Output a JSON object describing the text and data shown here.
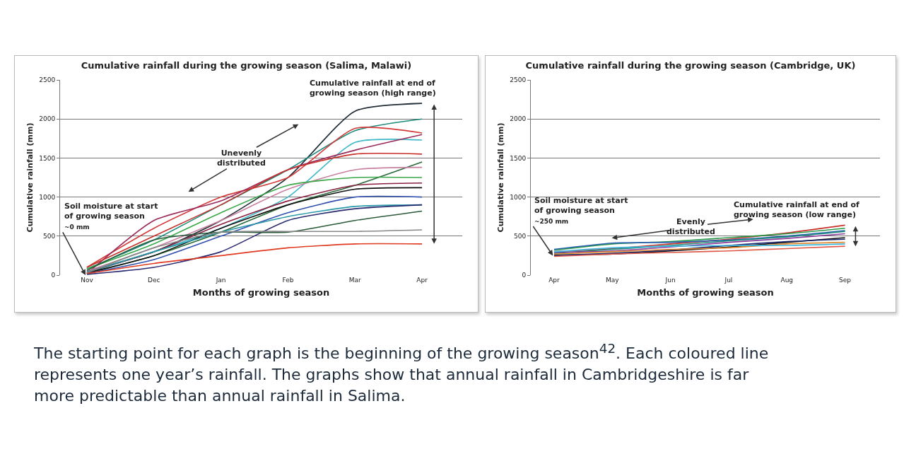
{
  "chart_data": [
    {
      "type": "line",
      "title": "Cumulative rainfall during the growing season (Salima, Malawi)",
      "xlabel": "Months of growing season",
      "ylabel": "Cumulative rainfall (mm)",
      "categories": [
        "Nov",
        "Dec",
        "Jan",
        "Feb",
        "Mar",
        "Apr"
      ],
      "ylim": [
        0,
        2500
      ],
      "yticks": [
        0,
        500,
        1000,
        1500,
        2000,
        2500
      ],
      "grid": "y",
      "marker": "none",
      "line_style": "solid",
      "series": [
        {
          "color": "#1f2a33",
          "values": [
            50,
            300,
            700,
            1250,
            2100,
            2200
          ]
        },
        {
          "color": "#1a8a7a",
          "values": [
            80,
            450,
            900,
            1350,
            1850,
            2000
          ]
        },
        {
          "color": "#d23a3a",
          "values": [
            100,
            600,
            1000,
            1250,
            1880,
            1820
          ]
        },
        {
          "color": "#3fb8c8",
          "values": [
            30,
            300,
            600,
            1000,
            1700,
            1730
          ]
        },
        {
          "color": "#9a2a5a",
          "values": [
            20,
            700,
            950,
            1350,
            1600,
            1800
          ]
        },
        {
          "color": "#c8302a",
          "values": [
            100,
            500,
            900,
            1350,
            1550,
            1550
          ]
        },
        {
          "color": "#2a6a3a",
          "values": [
            20,
            250,
            550,
            900,
            1150,
            1450
          ]
        },
        {
          "color": "#c880a0",
          "values": [
            50,
            350,
            700,
            1100,
            1350,
            1380
          ]
        },
        {
          "color": "#3aa84a",
          "values": [
            80,
            400,
            800,
            1150,
            1250,
            1250
          ]
        },
        {
          "color": "#8a2040",
          "values": [
            40,
            300,
            650,
            950,
            1150,
            1180
          ]
        },
        {
          "color": "#111111",
          "values": [
            30,
            250,
            600,
            900,
            1100,
            1120
          ]
        },
        {
          "color": "#3050b0",
          "values": [
            20,
            200,
            500,
            800,
            1000,
            1000
          ]
        },
        {
          "color": "#2a9aa8",
          "values": [
            40,
            300,
            550,
            750,
            880,
            900
          ]
        },
        {
          "color": "#2a2a70",
          "values": [
            10,
            100,
            300,
            700,
            850,
            900
          ]
        },
        {
          "color": "#2a5a3a",
          "values": [
            60,
            450,
            550,
            550,
            700,
            820
          ]
        },
        {
          "color": "#888888",
          "values": [
            30,
            350,
            550,
            560,
            560,
            580
          ]
        },
        {
          "color": "#e03a20",
          "values": [
            20,
            150,
            250,
            350,
            400,
            400
          ]
        }
      ],
      "annotations": [
        {
          "text": "Soil moisture at start of growing season\n~0 mm",
          "x": "Nov",
          "y": 0
        },
        "Unevenly distributed",
        {
          "text": "Cumulative rainfall at end of growing season (high range)",
          "x": "Apr",
          "y": 2200
        },
        "The starting point for each graph is the beginning of the growing season$^{42}$. Each coloured line represents one year’s rainfall. The graphs show that annual rainfall in Cambridgeshire is far more predictable than annual rainfall in Salima."
      ]
    },
    {
      "type": "line",
      "title": "Cumulative rainfall during the growing season (Cambridge, UK)",
      "xlabel": "Months of growing season",
      "ylabel": "Cumulative rainfall (mm)",
      "categories": [
        "Apr",
        "May",
        "Jun",
        "Jul",
        "Aug",
        "Sep"
      ],
      "ylim": [
        0,
        2500
      ],
      "yticks": [
        0,
        500,
        1000,
        1500,
        2000,
        2500
      ],
      "grid": "y",
      "marker": "none",
      "line_style": "solid",
      "series": [
        {
          "color": "#c8302a",
          "values": [
            300,
            340,
            400,
            460,
            540,
            640
          ]
        },
        {
          "color": "#2a9a4a",
          "values": [
            320,
            400,
            430,
            480,
            530,
            600
          ]
        },
        {
          "color": "#2a60b0",
          "values": [
            330,
            410,
            420,
            450,
            500,
            570
          ]
        },
        {
          "color": "#1a8a7a",
          "values": [
            280,
            330,
            380,
            440,
            490,
            560
          ]
        },
        {
          "color": "#8a3a9a",
          "values": [
            290,
            310,
            360,
            420,
            470,
            530
          ]
        },
        {
          "color": "#111111",
          "values": [
            260,
            270,
            310,
            360,
            420,
            480
          ]
        },
        {
          "color": "#202a70",
          "values": [
            250,
            280,
            320,
            380,
            430,
            460
          ]
        },
        {
          "color": "#e08a30",
          "values": [
            270,
            300,
            330,
            350,
            400,
            420
          ]
        },
        {
          "color": "#3fb8e0",
          "values": [
            300,
            350,
            370,
            380,
            380,
            400
          ]
        },
        {
          "color": "#e05a4a",
          "values": [
            240,
            270,
            290,
            310,
            340,
            370
          ]
        }
      ],
      "annotations": [
        {
          "text": "Soil moisture at start of growing season\n~250 mm",
          "x": "Apr",
          "y": 250
        },
        "Evenly distributed",
        {
          "text": "Cumulative rainfall at end of growing season (low range)",
          "x": "Sep",
          "y": 640
        }
      ]
    }
  ]
}
